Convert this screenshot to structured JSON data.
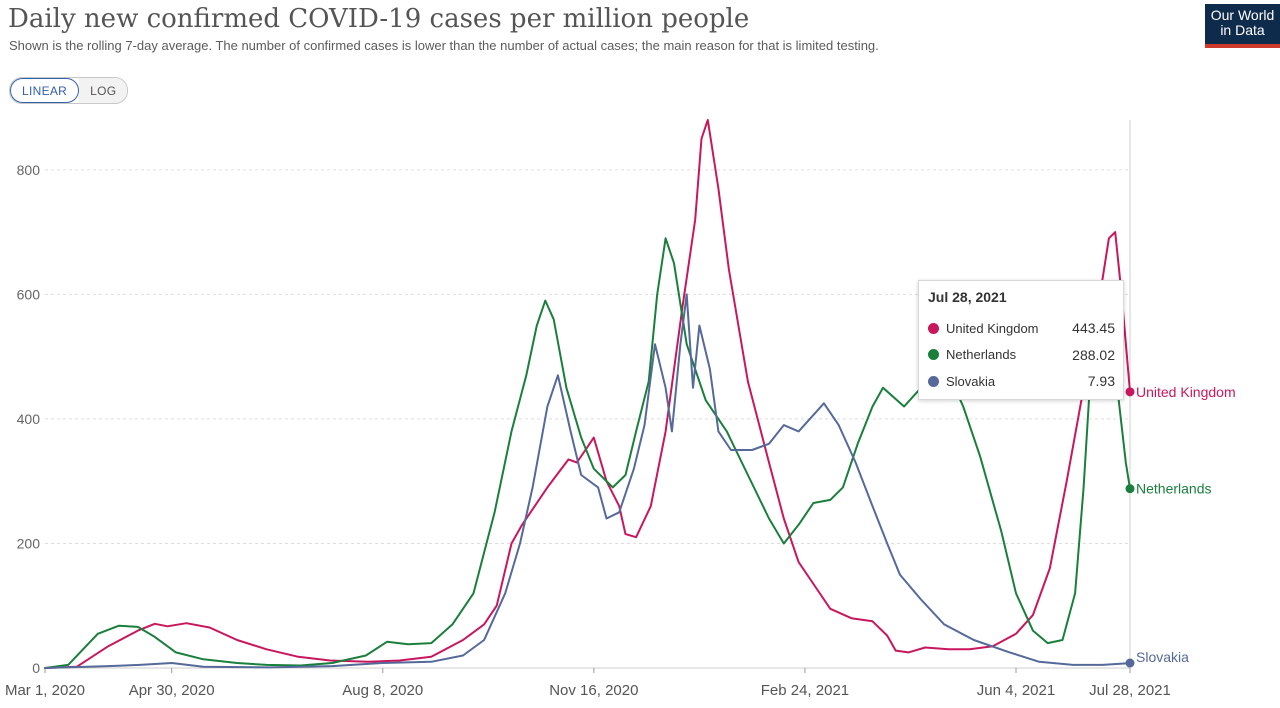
{
  "header": {
    "title": "Daily new confirmed COVID-19 cases per million people",
    "subtitle": "Shown is the rolling 7-day average. The number of confirmed cases is lower than the number of actual cases; the main reason for that is limited testing.",
    "logo_line1": "Our World",
    "logo_line2": "in Data"
  },
  "scale_toggle": {
    "linear_label": "LINEAR",
    "log_label": "LOG",
    "selected": "LINEAR"
  },
  "colors": {
    "united_kingdom": "#c8175d",
    "netherlands": "#1a7f3c",
    "slovakia": "#55699a",
    "grid": "#dddddd",
    "axis_text": "#666666"
  },
  "tooltip": {
    "date": "Jul 28, 2021",
    "rows": [
      {
        "name": "United Kingdom",
        "value": "443.45",
        "color": "#c8175d"
      },
      {
        "name": "Netherlands",
        "value": "288.02",
        "color": "#1a7f3c"
      },
      {
        "name": "Slovakia",
        "value": "7.93",
        "color": "#55699a"
      }
    ]
  },
  "chart_data": {
    "type": "line",
    "title": "Daily new confirmed COVID-19 cases per million people",
    "xlabel": "",
    "ylabel": "",
    "ylim": [
      0,
      880
    ],
    "xlim": [
      "2020-03-01",
      "2021-07-28"
    ],
    "yticks": [
      0,
      200,
      400,
      600,
      800
    ],
    "x_tick_labels": [
      {
        "date": "2020-03-01",
        "label": "Mar 1, 2020"
      },
      {
        "date": "2020-04-30",
        "label": "Apr 30, 2020"
      },
      {
        "date": "2020-08-08",
        "label": "Aug 8, 2020"
      },
      {
        "date": "2020-11-16",
        "label": "Nov 16, 2020"
      },
      {
        "date": "2021-02-24",
        "label": "Feb 24, 2021"
      },
      {
        "date": "2021-06-04",
        "label": "Jun 4, 2021"
      },
      {
        "date": "2021-07-28",
        "label": "Jul 28, 2021"
      }
    ],
    "grid": "horizontal",
    "legend": "end-labels",
    "series": [
      {
        "name": "United Kingdom",
        "color": "#c8175d",
        "points": [
          [
            "2020-03-01",
            0
          ],
          [
            "2020-03-16",
            2
          ],
          [
            "2020-03-31",
            35
          ],
          [
            "2020-04-14",
            60
          ],
          [
            "2020-04-22",
            71
          ],
          [
            "2020-04-28",
            67
          ],
          [
            "2020-05-07",
            72
          ],
          [
            "2020-05-18",
            65
          ],
          [
            "2020-05-31",
            45
          ],
          [
            "2020-06-14",
            30
          ],
          [
            "2020-06-29",
            18
          ],
          [
            "2020-07-14",
            12
          ],
          [
            "2020-08-01",
            10
          ],
          [
            "2020-08-16",
            12
          ],
          [
            "2020-08-31",
            18
          ],
          [
            "2020-09-15",
            45
          ],
          [
            "2020-09-25",
            70
          ],
          [
            "2020-10-01",
            100
          ],
          [
            "2020-10-08",
            200
          ],
          [
            "2020-10-13",
            230
          ],
          [
            "2020-10-25",
            290
          ],
          [
            "2020-11-04",
            335
          ],
          [
            "2020-11-08",
            330
          ],
          [
            "2020-11-13",
            355
          ],
          [
            "2020-11-16",
            370
          ],
          [
            "2020-11-22",
            300
          ],
          [
            "2020-11-28",
            260
          ],
          [
            "2020-12-01",
            215
          ],
          [
            "2020-12-06",
            210
          ],
          [
            "2020-12-13",
            260
          ],
          [
            "2020-12-20",
            380
          ],
          [
            "2020-12-28",
            580
          ],
          [
            "2021-01-03",
            720
          ],
          [
            "2021-01-06",
            850
          ],
          [
            "2021-01-09",
            880
          ],
          [
            "2021-01-14",
            770
          ],
          [
            "2021-01-19",
            640
          ],
          [
            "2021-01-28",
            460
          ],
          [
            "2021-02-07",
            330
          ],
          [
            "2021-02-14",
            240
          ],
          [
            "2021-02-21",
            170
          ],
          [
            "2021-03-01",
            130
          ],
          [
            "2021-03-08",
            95
          ],
          [
            "2021-03-18",
            80
          ],
          [
            "2021-03-28",
            75
          ],
          [
            "2021-04-04",
            52
          ],
          [
            "2021-04-08",
            28
          ],
          [
            "2021-04-14",
            25
          ],
          [
            "2021-04-22",
            33
          ],
          [
            "2021-05-03",
            30
          ],
          [
            "2021-05-13",
            30
          ],
          [
            "2021-05-24",
            35
          ],
          [
            "2021-06-04",
            55
          ],
          [
            "2021-06-12",
            85
          ],
          [
            "2021-06-20",
            160
          ],
          [
            "2021-06-28",
            300
          ],
          [
            "2021-07-05",
            430
          ],
          [
            "2021-07-12",
            560
          ],
          [
            "2021-07-18",
            690
          ],
          [
            "2021-07-21",
            700
          ],
          [
            "2021-07-24",
            600
          ],
          [
            "2021-07-28",
            443.45
          ]
        ]
      },
      {
        "name": "Netherlands",
        "color": "#1a7f3c",
        "points": [
          [
            "2020-03-01",
            0
          ],
          [
            "2020-03-12",
            5
          ],
          [
            "2020-03-26",
            55
          ],
          [
            "2020-04-05",
            68
          ],
          [
            "2020-04-14",
            66
          ],
          [
            "2020-04-22",
            50
          ],
          [
            "2020-05-02",
            25
          ],
          [
            "2020-05-15",
            14
          ],
          [
            "2020-05-31",
            8
          ],
          [
            "2020-06-14",
            5
          ],
          [
            "2020-06-30",
            4
          ],
          [
            "2020-07-15",
            8
          ],
          [
            "2020-07-31",
            20
          ],
          [
            "2020-08-10",
            42
          ],
          [
            "2020-08-20",
            38
          ],
          [
            "2020-08-31",
            40
          ],
          [
            "2020-09-10",
            70
          ],
          [
            "2020-09-20",
            120
          ],
          [
            "2020-09-30",
            250
          ],
          [
            "2020-10-08",
            380
          ],
          [
            "2020-10-15",
            470
          ],
          [
            "2020-10-20",
            550
          ],
          [
            "2020-10-24",
            590
          ],
          [
            "2020-10-28",
            560
          ],
          [
            "2020-11-03",
            450
          ],
          [
            "2020-11-10",
            370
          ],
          [
            "2020-11-16",
            320
          ],
          [
            "2020-11-25",
            290
          ],
          [
            "2020-12-01",
            310
          ],
          [
            "2020-12-06",
            380
          ],
          [
            "2020-12-12",
            460
          ],
          [
            "2020-12-16",
            600
          ],
          [
            "2020-12-20",
            690
          ],
          [
            "2020-12-24",
            650
          ],
          [
            "2020-12-30",
            520
          ],
          [
            "2021-01-08",
            430
          ],
          [
            "2021-01-18",
            380
          ],
          [
            "2021-01-28",
            310
          ],
          [
            "2021-02-07",
            240
          ],
          [
            "2021-02-14",
            200
          ],
          [
            "2021-02-21",
            230
          ],
          [
            "2021-02-28",
            265
          ],
          [
            "2021-03-08",
            270
          ],
          [
            "2021-03-14",
            290
          ],
          [
            "2021-03-21",
            360
          ],
          [
            "2021-03-28",
            420
          ],
          [
            "2021-04-02",
            450
          ],
          [
            "2021-04-12",
            420
          ],
          [
            "2021-04-20",
            450
          ],
          [
            "2021-04-28",
            510
          ],
          [
            "2021-05-10",
            420
          ],
          [
            "2021-05-18",
            340
          ],
          [
            "2021-05-28",
            220
          ],
          [
            "2021-06-04",
            120
          ],
          [
            "2021-06-12",
            60
          ],
          [
            "2021-06-19",
            40
          ],
          [
            "2021-06-26",
            45
          ],
          [
            "2021-07-02",
            120
          ],
          [
            "2021-07-06",
            290
          ],
          [
            "2021-07-10",
            510
          ],
          [
            "2021-07-14",
            580
          ],
          [
            "2021-07-18",
            580
          ],
          [
            "2021-07-22",
            450
          ],
          [
            "2021-07-26",
            330
          ],
          [
            "2021-07-28",
            288.02
          ]
        ]
      },
      {
        "name": "Slovakia",
        "color": "#55699a",
        "points": [
          [
            "2020-03-01",
            0
          ],
          [
            "2020-03-31",
            3
          ],
          [
            "2020-04-15",
            5
          ],
          [
            "2020-04-30",
            8
          ],
          [
            "2020-05-15",
            2
          ],
          [
            "2020-06-15",
            1
          ],
          [
            "2020-07-15",
            3
          ],
          [
            "2020-08-08",
            8
          ],
          [
            "2020-08-31",
            10
          ],
          [
            "2020-09-15",
            20
          ],
          [
            "2020-09-25",
            45
          ],
          [
            "2020-10-05",
            120
          ],
          [
            "2020-10-12",
            200
          ],
          [
            "2020-10-18",
            290
          ],
          [
            "2020-10-25",
            420
          ],
          [
            "2020-10-30",
            470
          ],
          [
            "2020-11-05",
            380
          ],
          [
            "2020-11-10",
            310
          ],
          [
            "2020-11-18",
            290
          ],
          [
            "2020-11-22",
            240
          ],
          [
            "2020-11-28",
            250
          ],
          [
            "2020-12-05",
            320
          ],
          [
            "2020-12-10",
            390
          ],
          [
            "2020-12-15",
            520
          ],
          [
            "2020-12-20",
            450
          ],
          [
            "2020-12-23",
            380
          ],
          [
            "2020-12-27",
            520
          ],
          [
            "2020-12-30",
            600
          ],
          [
            "2021-01-02",
            450
          ],
          [
            "2021-01-05",
            550
          ],
          [
            "2021-01-10",
            480
          ],
          [
            "2021-01-14",
            380
          ],
          [
            "2021-01-20",
            350
          ],
          [
            "2021-01-30",
            350
          ],
          [
            "2021-02-07",
            360
          ],
          [
            "2021-02-14",
            390
          ],
          [
            "2021-02-21",
            380
          ],
          [
            "2021-03-01",
            410
          ],
          [
            "2021-03-05",
            425
          ],
          [
            "2021-03-12",
            390
          ],
          [
            "2021-03-20",
            330
          ],
          [
            "2021-03-28",
            260
          ],
          [
            "2021-04-04",
            200
          ],
          [
            "2021-04-10",
            150
          ],
          [
            "2021-04-20",
            110
          ],
          [
            "2021-05-01",
            70
          ],
          [
            "2021-05-15",
            45
          ],
          [
            "2021-06-01",
            25
          ],
          [
            "2021-06-15",
            10
          ],
          [
            "2021-07-01",
            5
          ],
          [
            "2021-07-15",
            5
          ],
          [
            "2021-07-28",
            7.93
          ]
        ]
      }
    ]
  }
}
